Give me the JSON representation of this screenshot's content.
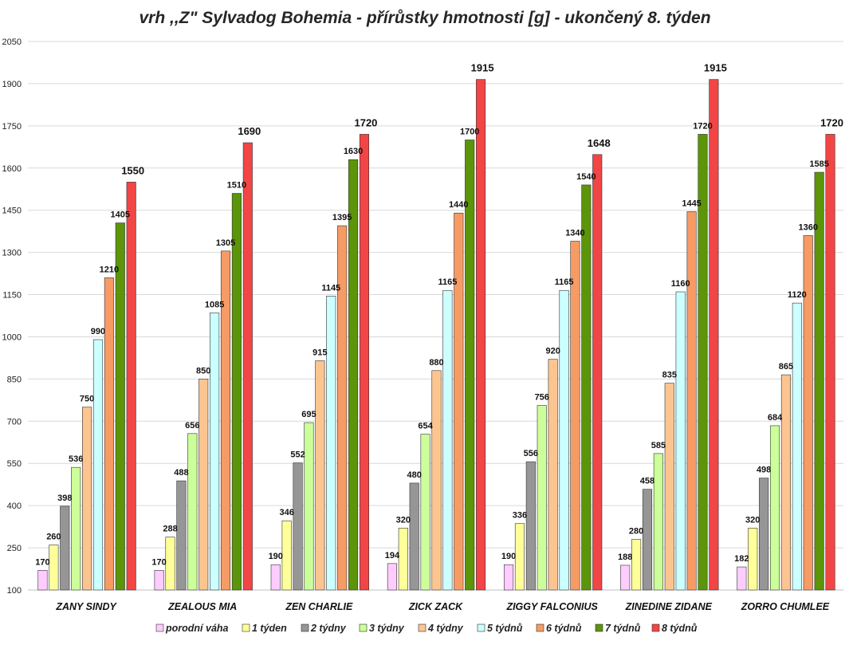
{
  "chart_data": {
    "type": "bar",
    "title": "vrh ,,Z\" Sylvadog Bohemia - přírůstky hmotnosti [g] - ukončený 8. týden",
    "xlabel": "",
    "ylabel": "",
    "ylim": [
      100,
      2050
    ],
    "yticks": [
      100,
      250,
      400,
      550,
      700,
      850,
      1000,
      1150,
      1300,
      1450,
      1600,
      1750,
      1900,
      2050
    ],
    "categories": [
      "ZANY SINDY",
      "ZEALOUS MIA",
      "ZEN CHARLIE",
      "ZICK ZACK",
      "ZIGGY FALCONIUS",
      "ZINEDINE ZIDANE",
      "ZORRO CHUMLEE"
    ],
    "series": [
      {
        "name": "porodní váha",
        "color": "#ffccff",
        "values": [
          170,
          170,
          190,
          194,
          190,
          188,
          182
        ]
      },
      {
        "name": "1 týden",
        "color": "#ffff99",
        "values": [
          260,
          288,
          346,
          320,
          336,
          280,
          320
        ]
      },
      {
        "name": "2 týdny",
        "color": "#969696",
        "values": [
          398,
          488,
          552,
          480,
          556,
          458,
          498
        ]
      },
      {
        "name": "3 týdny",
        "color": "#ccff99",
        "values": [
          536,
          656,
          695,
          654,
          756,
          585,
          684
        ]
      },
      {
        "name": "4 týdny",
        "color": "#fcc590",
        "values": [
          750,
          850,
          915,
          880,
          920,
          835,
          865
        ]
      },
      {
        "name": "5 týdnů",
        "color": "#ccffff",
        "values": [
          990,
          1085,
          1145,
          1165,
          1165,
          1160,
          1120
        ]
      },
      {
        "name": "6 týdnů",
        "color": "#f79b65",
        "values": [
          1210,
          1305,
          1395,
          1440,
          1340,
          1445,
          1360
        ]
      },
      {
        "name": "7 týdnů",
        "color": "#5c940a",
        "values": [
          1405,
          1510,
          1630,
          1700,
          1540,
          1720,
          1585
        ]
      },
      {
        "name": "8 týdnů",
        "color": "#f24545",
        "values": [
          1550,
          1690,
          1720,
          1915,
          1648,
          1915,
          1720
        ]
      }
    ],
    "grid": true,
    "legend_position": "bottom"
  }
}
